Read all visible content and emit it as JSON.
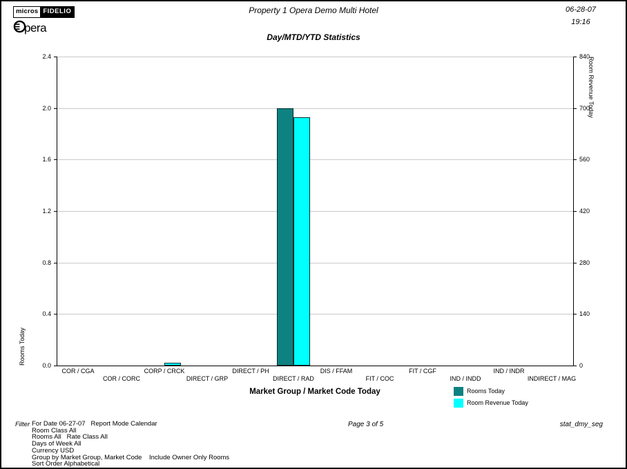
{
  "logo": {
    "micros": "micros",
    "fidelio": "FIDELIO",
    "opera_rest": "pera"
  },
  "header": {
    "property": "Property 1 Opera Demo Multi Hotel",
    "date": "06-28-07",
    "time": "19:16"
  },
  "report_title": "Day/MTD/YTD Statistics",
  "chart_data": {
    "type": "bar",
    "title": "Day/MTD/YTD Statistics",
    "xlabel": "Market Group / Market Code Today",
    "categories": [
      "COR / CGA",
      "COR / CORC",
      "CORP / CRCK",
      "DIRECT / GRP",
      "DIRECT / PH",
      "DIRECT / RAD",
      "DIS / FFAM",
      "FIT / COC",
      "FIT / CGF",
      "IND / INDD",
      "IND / INDR",
      "INDIRECT / MAG"
    ],
    "series": [
      {
        "name": "Rooms Today",
        "axis": "left",
        "color": "#0E8181",
        "values": [
          0,
          0,
          0,
          0,
          0,
          2.0,
          0,
          0,
          0,
          0,
          0,
          0
        ]
      },
      {
        "name": "Room Revenue Today",
        "axis": "right",
        "color": "#00FFFF",
        "values": [
          0,
          0,
          8,
          0,
          0,
          675,
          0,
          0,
          0,
          0,
          0,
          0
        ]
      }
    ],
    "left_axis": {
      "label": "Rooms Today",
      "min": 0,
      "max": 2.4,
      "ticks": [
        "0.0",
        "0.4",
        "0.8",
        "1.2",
        "1.6",
        "2.0",
        "2.4"
      ]
    },
    "right_axis": {
      "label": "Room Revenue Today",
      "min": 0,
      "max": 840,
      "ticks": [
        "0",
        "140",
        "280",
        "420",
        "560",
        "700",
        "840"
      ]
    },
    "grid": "horizontal",
    "gridline_color": "#c9c9c9",
    "legend_position": "bottom-right"
  },
  "footer": {
    "filter_label": "Filter",
    "filter_lines": [
      "For Date 06-27-07   Report Mode Calendar",
      "Room Class All",
      "Rooms All   Rate Class All",
      "Days of Week All",
      "Currency USD",
      "Group by Market Group, Market Code    Include Owner Only Rooms",
      "Sort Order Alphabetical"
    ],
    "page_info": "Page 3 of 5",
    "report_code": "stat_dmy_seg"
  }
}
